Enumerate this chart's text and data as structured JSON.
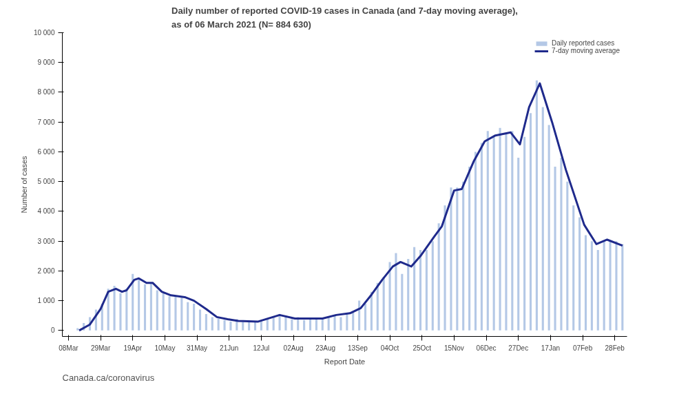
{
  "chart_data": {
    "type": "bar",
    "title": "Daily number of reported COVID-19 cases in Canada (and 7-day moving average),\nas of 06 March 2021 (N= 884 630)",
    "xlabel": "Report Date",
    "ylabel": "Number of cases",
    "x": [
      "2020-03-14",
      "2020-03-18",
      "2020-03-22",
      "2020-03-26",
      "2020-03-30",
      "2020-04-03",
      "2020-04-07",
      "2020-04-11",
      "2020-04-15",
      "2020-04-19",
      "2020-04-23",
      "2020-04-27",
      "2020-05-01",
      "2020-05-05",
      "2020-05-09",
      "2020-05-13",
      "2020-05-17",
      "2020-05-21",
      "2020-05-25",
      "2020-05-29",
      "2020-06-02",
      "2020-06-06",
      "2020-06-10",
      "2020-06-14",
      "2020-06-18",
      "2020-06-22",
      "2020-06-26",
      "2020-06-30",
      "2020-07-04",
      "2020-07-08",
      "2020-07-12",
      "2020-07-16",
      "2020-07-20",
      "2020-07-24",
      "2020-07-28",
      "2020-08-01",
      "2020-08-05",
      "2020-08-09",
      "2020-08-13",
      "2020-08-17",
      "2020-08-21",
      "2020-08-25",
      "2020-08-29",
      "2020-09-02",
      "2020-09-06",
      "2020-09-10",
      "2020-09-14",
      "2020-09-18",
      "2020-09-22",
      "2020-09-26",
      "2020-09-30",
      "2020-10-04",
      "2020-10-08",
      "2020-10-12",
      "2020-10-16",
      "2020-10-20",
      "2020-10-24",
      "2020-10-28",
      "2020-11-01",
      "2020-11-05",
      "2020-11-09",
      "2020-11-13",
      "2020-11-17",
      "2020-11-21",
      "2020-11-25",
      "2020-11-29",
      "2020-12-03",
      "2020-12-07",
      "2020-12-11",
      "2020-12-15",
      "2020-12-19",
      "2020-12-23",
      "2020-12-27",
      "2020-12-31",
      "2021-01-04",
      "2021-01-08",
      "2021-01-12",
      "2021-01-16",
      "2021-01-20",
      "2021-01-24",
      "2021-01-28",
      "2021-02-01",
      "2021-02-05",
      "2021-02-09",
      "2021-02-13",
      "2021-02-17",
      "2021-02-21",
      "2021-02-25",
      "2021-03-01",
      "2021-03-05"
    ],
    "series": [
      {
        "name": "Daily reported cases",
        "color": "#b4c8e6",
        "values": [
          80,
          250,
          450,
          700,
          900,
          1400,
          1500,
          1250,
          1400,
          1900,
          1700,
          1550,
          1600,
          1350,
          1250,
          1150,
          1150,
          1100,
          950,
          900,
          700,
          550,
          450,
          400,
          350,
          300,
          380,
          280,
          320,
          280,
          300,
          400,
          480,
          550,
          500,
          380,
          450,
          350,
          400,
          380,
          420,
          450,
          500,
          450,
          550,
          600,
          1000,
          900,
          1300,
          1600,
          1800,
          2300,
          2600,
          1900,
          2400,
          2800,
          2700,
          2700,
          3000,
          3600,
          4200,
          4800,
          4800,
          5000,
          5500,
          6000,
          6300,
          6700,
          6500,
          6800,
          6600,
          6700,
          5800,
          6500,
          7300,
          8400,
          7500,
          6900,
          5500,
          5800,
          5000,
          4200,
          3800,
          3200,
          3000,
          2700,
          3000,
          3000,
          3000,
          2900
        ]
      },
      {
        "name": "7-day moving average",
        "type": "line",
        "color": "#1f2a8c",
        "x": [
          "2020-03-15",
          "2020-03-22",
          "2020-03-29",
          "2020-04-03",
          "2020-04-08",
          "2020-04-12",
          "2020-04-15",
          "2020-04-20",
          "2020-04-23",
          "2020-04-28",
          "2020-05-02",
          "2020-05-08",
          "2020-05-14",
          "2020-05-23",
          "2020-05-29",
          "2020-06-06",
          "2020-06-13",
          "2020-06-20",
          "2020-06-27",
          "2020-07-10",
          "2020-07-24",
          "2020-08-03",
          "2020-08-21",
          "2020-08-30",
          "2020-09-08",
          "2020-09-15",
          "2020-09-22",
          "2020-09-29",
          "2020-10-06",
          "2020-10-11",
          "2020-10-18",
          "2020-10-24",
          "2020-11-02",
          "2020-11-07",
          "2020-11-15",
          "2020-11-20",
          "2020-11-28",
          "2020-12-05",
          "2020-12-12",
          "2020-12-22",
          "2020-12-28",
          "2021-01-03",
          "2021-01-10",
          "2021-01-18",
          "2021-01-27",
          "2021-02-08",
          "2021-02-16",
          "2021-02-23",
          "2021-03-05"
        ],
        "values": [
          0,
          200,
          720,
          1300,
          1400,
          1300,
          1350,
          1700,
          1750,
          1600,
          1600,
          1300,
          1180,
          1120,
          1000,
          720,
          450,
          380,
          320,
          300,
          520,
          400,
          400,
          520,
          580,
          750,
          1200,
          1700,
          2150,
          2300,
          2150,
          2500,
          3150,
          3500,
          4700,
          4750,
          5700,
          6350,
          6550,
          6650,
          6250,
          7500,
          8300,
          7000,
          5400,
          3550,
          2900,
          3050,
          2850
        ]
      }
    ],
    "xlim": [
      "2020-03-04",
      "2021-03-08"
    ],
    "xticks": [
      {
        "value": "2020-03-08",
        "label": "08Mar"
      },
      {
        "value": "2020-03-29",
        "label": "29Mar"
      },
      {
        "value": "2020-04-19",
        "label": "19Apr"
      },
      {
        "value": "2020-05-10",
        "label": "10May"
      },
      {
        "value": "2020-05-31",
        "label": "31May"
      },
      {
        "value": "2020-06-21",
        "label": "21Jun"
      },
      {
        "value": "2020-07-12",
        "label": "12Jul"
      },
      {
        "value": "2020-08-02",
        "label": "02Aug"
      },
      {
        "value": "2020-08-23",
        "label": "23Aug"
      },
      {
        "value": "2020-09-13",
        "label": "13Sep"
      },
      {
        "value": "2020-10-04",
        "label": "04Oct"
      },
      {
        "value": "2020-10-25",
        "label": "25Oct"
      },
      {
        "value": "2020-11-15",
        "label": "15Nov"
      },
      {
        "value": "2020-12-06",
        "label": "06Dec"
      },
      {
        "value": "2020-12-27",
        "label": "27Dec"
      },
      {
        "value": "2021-01-17",
        "label": "17Jan"
      },
      {
        "value": "2021-02-07",
        "label": "07Feb"
      },
      {
        "value": "2021-02-28",
        "label": "28Feb"
      }
    ],
    "ylim": [
      -200,
      10000
    ],
    "yticks": [
      0,
      {
        "value": 1000,
        "label": "1 000"
      },
      {
        "value": 2000,
        "label": "2 000"
      },
      {
        "value": 3000,
        "label": "3 000"
      },
      {
        "value": 4000,
        "label": "4 000"
      },
      {
        "value": 5000,
        "label": "5 000"
      },
      {
        "value": 6000,
        "label": "6 000"
      },
      {
        "value": 7000,
        "label": "7 000"
      },
      {
        "value": 8000,
        "label": "8 000"
      },
      {
        "value": 9000,
        "label": "9 000"
      },
      {
        "value": 10000,
        "label": "10 000"
      }
    ],
    "legend": "top right",
    "grid": false,
    "annotations": [
      "Canada.ca/coronavirus"
    ]
  }
}
